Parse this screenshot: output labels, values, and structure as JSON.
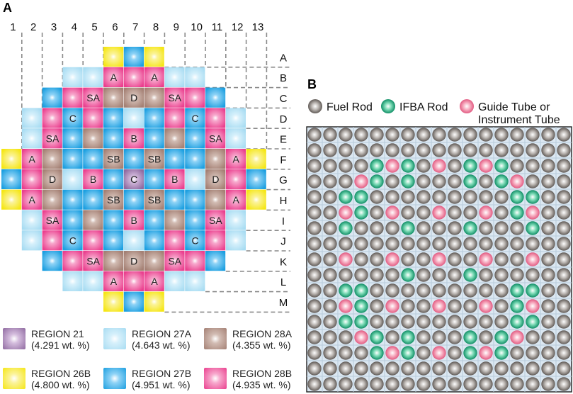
{
  "panel_a": {
    "label": "A",
    "columns": [
      "1",
      "2",
      "3",
      "4",
      "5",
      "6",
      "7",
      "8",
      "9",
      "10",
      "11",
      "12",
      "13"
    ],
    "rows": [
      "A",
      "B",
      "C",
      "D",
      "E",
      "F",
      "G",
      "H",
      "I",
      "J",
      "K",
      "L",
      "M"
    ],
    "grid": [
      [
        "",
        "",
        "",
        "",
        "",
        "26B",
        "27B",
        "26B",
        "",
        "",
        "",
        "",
        ""
      ],
      [
        "",
        "",
        "",
        "27A",
        "27A",
        "28B",
        "28B",
        "28B",
        "27A",
        "27A",
        "",
        "",
        ""
      ],
      [
        "",
        "",
        "27B",
        "28B",
        "28B",
        "28A",
        "28A",
        "28A",
        "28B",
        "28B",
        "27B",
        "",
        ""
      ],
      [
        "",
        "27A",
        "28B",
        "27B",
        "28B",
        "27B",
        "27A",
        "27B",
        "28B",
        "27B",
        "28B",
        "27A",
        ""
      ],
      [
        "",
        "27A",
        "28B",
        "27B",
        "28A",
        "27B",
        "28B",
        "27B",
        "28A",
        "27B",
        "28B",
        "27A",
        ""
      ],
      [
        "26B",
        "28B",
        "28A",
        "27B",
        "27B",
        "28A",
        "27B",
        "28A",
        "27B",
        "27B",
        "28A",
        "28B",
        "26B"
      ],
      [
        "27B",
        "28B",
        "28A",
        "27A",
        "28B",
        "27B",
        "21",
        "27B",
        "28B",
        "27A",
        "28A",
        "28B",
        "27B"
      ],
      [
        "26B",
        "28B",
        "28A",
        "27B",
        "27B",
        "28A",
        "27B",
        "28A",
        "27B",
        "27B",
        "28A",
        "28B",
        "26B"
      ],
      [
        "",
        "27A",
        "28B",
        "27B",
        "28A",
        "27B",
        "28B",
        "27B",
        "28A",
        "27B",
        "28B",
        "27A",
        ""
      ],
      [
        "",
        "27A",
        "28B",
        "27B",
        "28B",
        "27B",
        "27A",
        "27B",
        "28B",
        "27B",
        "28B",
        "27A",
        ""
      ],
      [
        "",
        "",
        "27B",
        "28B",
        "28B",
        "28A",
        "28A",
        "28A",
        "28B",
        "28B",
        "27B",
        "",
        ""
      ],
      [
        "",
        "",
        "",
        "27A",
        "27A",
        "28B",
        "28B",
        "28B",
        "27A",
        "27A",
        "",
        "",
        ""
      ],
      [
        "",
        "",
        "",
        "",
        "",
        "26B",
        "27B",
        "26B",
        "",
        "",
        "",
        "",
        ""
      ]
    ],
    "cell_labels": [
      {
        "row": 1,
        "col": 5,
        "text": "A"
      },
      {
        "row": 1,
        "col": 7,
        "text": "A"
      },
      {
        "row": 2,
        "col": 4,
        "text": "SA"
      },
      {
        "row": 2,
        "col": 6,
        "text": "D"
      },
      {
        "row": 2,
        "col": 8,
        "text": "SA"
      },
      {
        "row": 3,
        "col": 3,
        "text": "C"
      },
      {
        "row": 3,
        "col": 9,
        "text": "C"
      },
      {
        "row": 4,
        "col": 2,
        "text": "SA"
      },
      {
        "row": 4,
        "col": 6,
        "text": "B"
      },
      {
        "row": 4,
        "col": 10,
        "text": "SA"
      },
      {
        "row": 5,
        "col": 1,
        "text": "A"
      },
      {
        "row": 5,
        "col": 5,
        "text": "SB"
      },
      {
        "row": 5,
        "col": 7,
        "text": "SB"
      },
      {
        "row": 5,
        "col": 11,
        "text": "A"
      },
      {
        "row": 6,
        "col": 2,
        "text": "D"
      },
      {
        "row": 6,
        "col": 4,
        "text": "B"
      },
      {
        "row": 6,
        "col": 6,
        "text": "C"
      },
      {
        "row": 6,
        "col": 8,
        "text": "B"
      },
      {
        "row": 6,
        "col": 10,
        "text": "D"
      },
      {
        "row": 7,
        "col": 1,
        "text": "A"
      },
      {
        "row": 7,
        "col": 5,
        "text": "SB"
      },
      {
        "row": 7,
        "col": 7,
        "text": "SB"
      },
      {
        "row": 7,
        "col": 11,
        "text": "A"
      },
      {
        "row": 8,
        "col": 2,
        "text": "SA"
      },
      {
        "row": 8,
        "col": 6,
        "text": "B"
      },
      {
        "row": 8,
        "col": 10,
        "text": "SA"
      },
      {
        "row": 9,
        "col": 3,
        "text": "C"
      },
      {
        "row": 9,
        "col": 9,
        "text": "C"
      },
      {
        "row": 10,
        "col": 4,
        "text": "SA"
      },
      {
        "row": 10,
        "col": 6,
        "text": "D"
      },
      {
        "row": 10,
        "col": 8,
        "text": "SA"
      },
      {
        "row": 11,
        "col": 5,
        "text": "A"
      },
      {
        "row": 11,
        "col": 7,
        "text": "A"
      }
    ],
    "legend": [
      {
        "key": "21",
        "name": "REGION 21",
        "enrichment": "(4.291 wt. %)",
        "color": "#8f6aa0"
      },
      {
        "key": "27A",
        "name": "REGION 27A",
        "enrichment": "(4.643 wt. %)",
        "color": "#a8dcf2"
      },
      {
        "key": "28A",
        "name": "REGION 28A",
        "enrichment": "(4.355 wt. %)",
        "color": "#a48074"
      },
      {
        "key": "26B",
        "name": "REGION 26B",
        "enrichment": "(4.800 wt. %)",
        "color": "#f5e614"
      },
      {
        "key": "27B",
        "name": "REGION 27B",
        "enrichment": "(4.951 wt. %)",
        "color": "#1c9fe0"
      },
      {
        "key": "28B",
        "name": "REGION 28B",
        "enrichment": "(4.935 wt. %)",
        "color": "#ea3f8e"
      }
    ]
  },
  "panel_b": {
    "label": "B",
    "size": 17,
    "legend": [
      {
        "key": "fuel",
        "label": "Fuel Rod",
        "color": "#8b8581"
      },
      {
        "key": "ifba",
        "label": "IFBA Rod",
        "color": "#23b486"
      },
      {
        "key": "guide",
        "label_line1": "Guide Tube or",
        "label_line2": "Instrument Tube",
        "color": "#f07a9a"
      }
    ],
    "guide_tubes": [
      [
        2,
        5
      ],
      [
        2,
        8
      ],
      [
        2,
        11
      ],
      [
        3,
        3
      ],
      [
        3,
        13
      ],
      [
        5,
        2
      ],
      [
        5,
        5
      ],
      [
        5,
        8
      ],
      [
        5,
        11
      ],
      [
        5,
        14
      ],
      [
        8,
        2
      ],
      [
        8,
        5
      ],
      [
        8,
        8
      ],
      [
        8,
        11
      ],
      [
        8,
        14
      ],
      [
        11,
        2
      ],
      [
        11,
        5
      ],
      [
        11,
        8
      ],
      [
        11,
        11
      ],
      [
        11,
        14
      ],
      [
        13,
        3
      ],
      [
        13,
        13
      ],
      [
        14,
        5
      ],
      [
        14,
        8
      ],
      [
        14,
        11
      ]
    ],
    "ifba_rods": [
      [
        2,
        4
      ],
      [
        2,
        6
      ],
      [
        2,
        10
      ],
      [
        2,
        12
      ],
      [
        3,
        4
      ],
      [
        3,
        6
      ],
      [
        3,
        10
      ],
      [
        3,
        12
      ],
      [
        4,
        2
      ],
      [
        4,
        3
      ],
      [
        4,
        13
      ],
      [
        4,
        14
      ],
      [
        5,
        3
      ],
      [
        5,
        13
      ],
      [
        6,
        2
      ],
      [
        6,
        6
      ],
      [
        6,
        10
      ],
      [
        6,
        14
      ],
      [
        9,
        6
      ],
      [
        9,
        10
      ],
      [
        10,
        2
      ],
      [
        10,
        3
      ],
      [
        10,
        13
      ],
      [
        10,
        14
      ],
      [
        11,
        3
      ],
      [
        11,
        13
      ],
      [
        12,
        2
      ],
      [
        12,
        3
      ],
      [
        12,
        13
      ],
      [
        12,
        14
      ],
      [
        13,
        4
      ],
      [
        13,
        6
      ],
      [
        13,
        10
      ],
      [
        13,
        12
      ],
      [
        14,
        4
      ],
      [
        14,
        6
      ],
      [
        14,
        10
      ],
      [
        14,
        12
      ]
    ]
  }
}
